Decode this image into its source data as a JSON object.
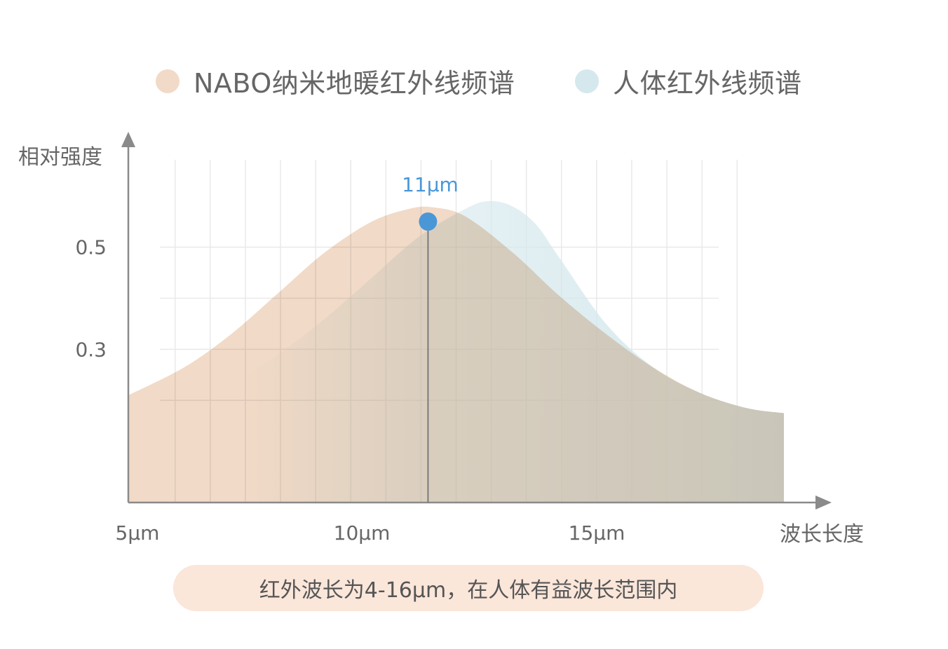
{
  "legend": {
    "items": [
      {
        "label": "NABO纳米地暖红外线频谱",
        "color": "#f1dac7"
      },
      {
        "label": "人体红外线频谱",
        "color": "#d5e8ed"
      }
    ]
  },
  "note": {
    "text": "红外波长为4-16μm，在人体有益波长范围内"
  },
  "colors": {
    "axis": "#8a8a8a",
    "grid": "#e9e9e9",
    "marker": "#4a97d8",
    "peak_line": "#7a7a7a"
  },
  "chart_data": {
    "type": "area",
    "xlabel": "波长长度",
    "ylabel": "相对强度",
    "x_ticks": [
      {
        "value": 5,
        "label": "5μm"
      },
      {
        "value": 10,
        "label": "10μm"
      },
      {
        "value": 15,
        "label": "15μm"
      }
    ],
    "y_ticks": [
      {
        "value": 0.3,
        "label": "0.3"
      },
      {
        "value": 0.5,
        "label": "0.5"
      }
    ],
    "xlim": [
      4.8,
      18.8
    ],
    "ylim": [
      0,
      0.73
    ],
    "grid": true,
    "legend_position": "top",
    "series": [
      {
        "name": "NABO纳米地暖红外线频谱",
        "color": "#f1dac7",
        "x": [
          4.8,
          6,
          7,
          8,
          9,
          10,
          10.8,
          11.3,
          12,
          13,
          14,
          15,
          16,
          17,
          18,
          18.8
        ],
        "y": [
          0.21,
          0.265,
          0.33,
          0.41,
          0.49,
          0.55,
          0.575,
          0.578,
          0.56,
          0.49,
          0.405,
          0.33,
          0.265,
          0.215,
          0.185,
          0.175
        ]
      },
      {
        "name": "人体红外线频谱",
        "color": "#d5e8ed",
        "x": [
          7.3,
          8,
          9,
          10,
          11,
          12,
          12.5,
          13,
          13.5,
          14,
          15,
          16,
          17,
          18,
          18.8
        ],
        "y": [
          0.25,
          0.29,
          0.36,
          0.44,
          0.52,
          0.575,
          0.59,
          0.58,
          0.545,
          0.48,
          0.35,
          0.265,
          0.215,
          0.185,
          0.175
        ]
      }
    ],
    "annotation": {
      "x": 11.2,
      "y": 0.55,
      "label": "11μm"
    }
  }
}
